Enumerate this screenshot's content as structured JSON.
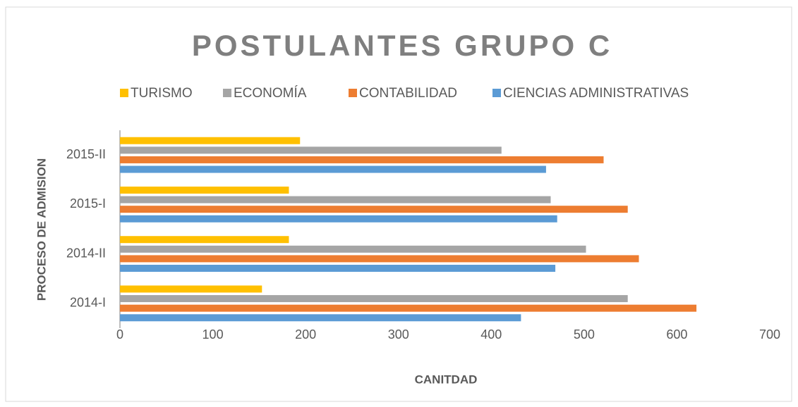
{
  "chart_data": {
    "type": "bar",
    "orientation": "horizontal",
    "title": "POSTULANTES GRUPO C",
    "xlabel": "CANITDAD",
    "ylabel": "PROCESO DE ADMISION",
    "categories": [
      "2014-I",
      "2014-II",
      "2015-I",
      "2015-II"
    ],
    "series": [
      {
        "name": "TURISMO",
        "color": "#ffc000",
        "values": [
          153,
          182,
          182,
          194
        ]
      },
      {
        "name": "ECONOMÍA",
        "color": "#a5a5a5",
        "values": [
          547,
          502,
          464,
          411
        ]
      },
      {
        "name": "CONTABILIDAD",
        "color": "#ed7d31",
        "values": [
          621,
          559,
          547,
          521
        ]
      },
      {
        "name": "CIENCIAS ADMINISTRATIVAS",
        "color": "#5b9bd5",
        "values": [
          432,
          469,
          471,
          459
        ]
      }
    ],
    "xlim": [
      0,
      700
    ],
    "xticks": [
      0,
      100,
      200,
      300,
      400,
      500,
      600,
      700
    ],
    "grid": false,
    "legend": "top"
  }
}
